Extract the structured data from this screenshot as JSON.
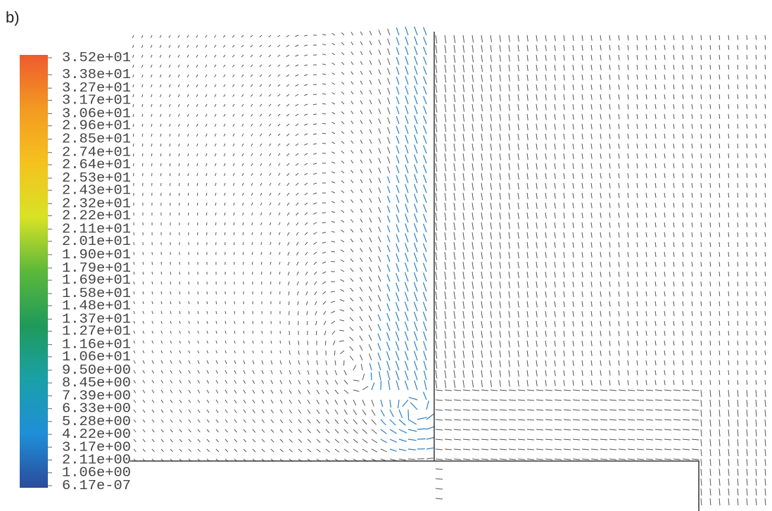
{
  "panel_label": "b)",
  "chart_data": {
    "type": "vector-field",
    "clim": [
      6.17e-07,
      35.2
    ],
    "colormap": [
      "#2a4b9b",
      "#1f8fd8",
      "#1aa0a8",
      "#1f9a5a",
      "#5cb83a",
      "#d8e226",
      "#f5c21e",
      "#f39a22",
      "#ee5a2e"
    ],
    "cticks": [
      {
        "value": 35.2,
        "label": "3.52e+01"
      },
      {
        "value": 33.8,
        "label": "3.38e+01"
      },
      {
        "value": 32.7,
        "label": "3.27e+01"
      },
      {
        "value": 31.7,
        "label": "3.17e+01"
      },
      {
        "value": 30.6,
        "label": "3.06e+01"
      },
      {
        "value": 29.6,
        "label": "2.96e+01"
      },
      {
        "value": 28.5,
        "label": "2.85e+01"
      },
      {
        "value": 27.4,
        "label": "2.74e+01"
      },
      {
        "value": 26.4,
        "label": "2.64e+01"
      },
      {
        "value": 25.3,
        "label": "2.53e+01"
      },
      {
        "value": 24.3,
        "label": "2.43e+01"
      },
      {
        "value": 23.2,
        "label": "2.32e+01"
      },
      {
        "value": 22.2,
        "label": "2.22e+01"
      },
      {
        "value": 21.1,
        "label": "2.11e+01"
      },
      {
        "value": 20.1,
        "label": "2.01e+01"
      },
      {
        "value": 19.0,
        "label": "1.90e+01"
      },
      {
        "value": 17.9,
        "label": "1.79e+01"
      },
      {
        "value": 16.9,
        "label": "1.69e+01"
      },
      {
        "value": 15.8,
        "label": "1.58e+01"
      },
      {
        "value": 14.8,
        "label": "1.48e+01"
      },
      {
        "value": 13.7,
        "label": "1.37e+01"
      },
      {
        "value": 12.7,
        "label": "1.27e+01"
      },
      {
        "value": 11.6,
        "label": "1.16e+01"
      },
      {
        "value": 10.6,
        "label": "1.06e+01"
      },
      {
        "value": 9.5,
        "label": "9.50e+00"
      },
      {
        "value": 8.45,
        "label": "8.45e+00"
      },
      {
        "value": 7.39,
        "label": "7.39e+00"
      },
      {
        "value": 6.33,
        "label": "6.33e+00"
      },
      {
        "value": 5.28,
        "label": "5.28e+00"
      },
      {
        "value": 4.22,
        "label": "4.22e+00"
      },
      {
        "value": 3.17,
        "label": "3.17e+00"
      },
      {
        "value": 2.11,
        "label": "2.11e+00"
      },
      {
        "value": 1.06,
        "label": "1.06e+00"
      },
      {
        "value": 6.17e-07,
        "label": "6.17e-07"
      }
    ]
  }
}
